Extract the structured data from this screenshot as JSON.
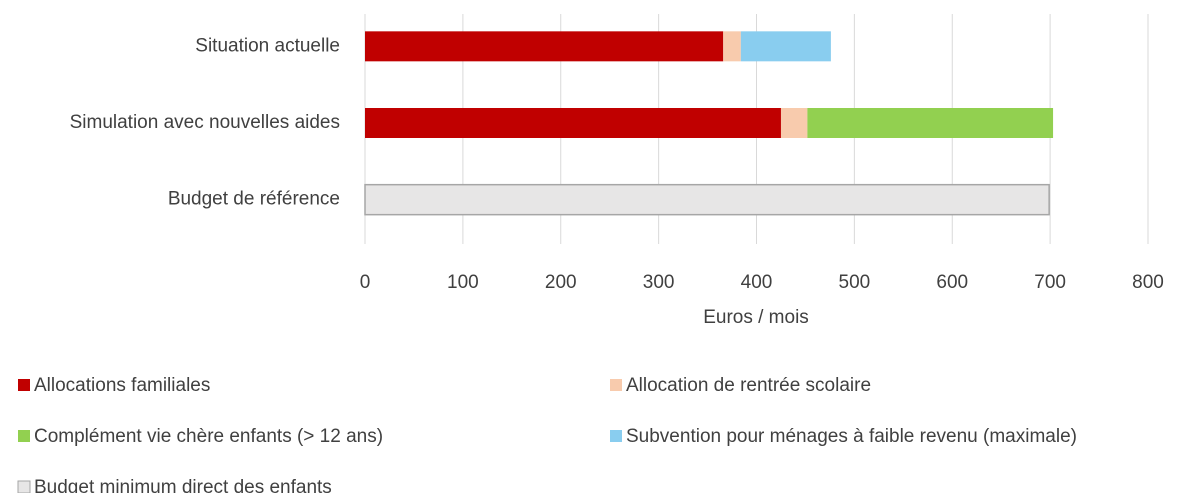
{
  "chart_data": {
    "type": "stacked-barh",
    "categories": [
      "Situation actuelle",
      "Simulation avec nouvelles aides",
      "Budget de référence"
    ],
    "series": [
      {
        "name": "Allocations familiales",
        "color": "#c00000",
        "values": [
          366,
          425,
          null
        ]
      },
      {
        "name": "Allocation de rentrée scolaire",
        "color": "#f8cbad",
        "values": [
          18,
          27,
          null
        ]
      },
      {
        "name": "Complément vie chère enfants (> 12 ans)",
        "color": "#92d050",
        "values": [
          null,
          251,
          null
        ]
      },
      {
        "name": "Subvention pour ménages à faible revenu (maximale)",
        "color": "#89cdef",
        "values": [
          92,
          null,
          null
        ]
      },
      {
        "name": "Budget minimum direct des enfants",
        "color": "#e7e6e6",
        "edgecolor": "#a6a6a6",
        "values": [
          null,
          null,
          699
        ]
      }
    ],
    "xlabel": "Euros / mois",
    "xlim": [
      0,
      800
    ],
    "xticks": [
      0,
      100,
      200,
      300,
      400,
      500,
      600,
      700,
      800
    ],
    "grid": true
  }
}
